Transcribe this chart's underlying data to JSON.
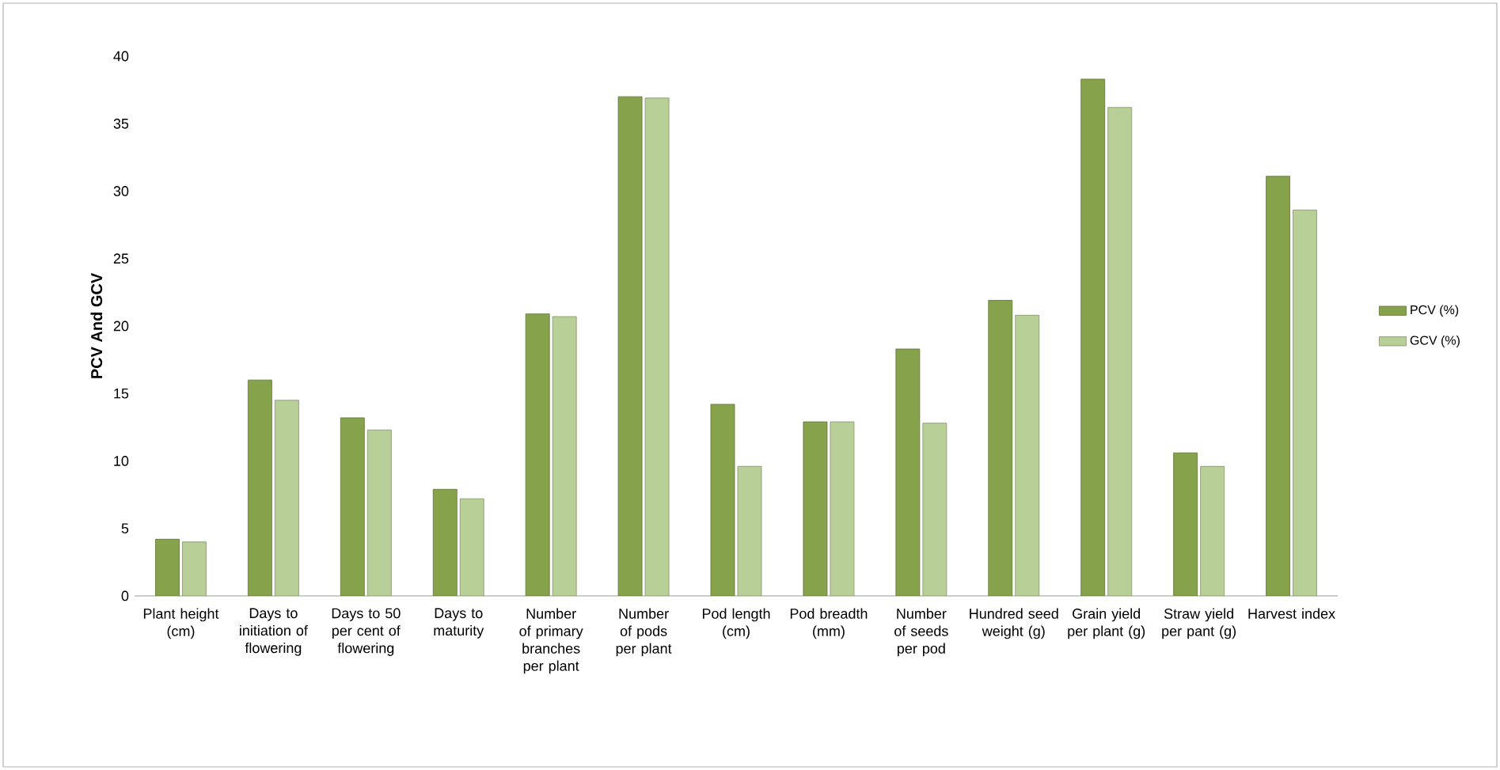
{
  "chart_data": {
    "type": "bar",
    "ylabel": "PCV And GCV",
    "categories": [
      "Plant height (cm)",
      "Days to initiation of flowering",
      "Days to 50 per cent of flowering",
      "Days to maturity",
      "Number of primary branches per plant",
      "Number of pods per plant",
      "Pod length (cm)",
      "Pod breadth (mm)",
      "Number of seeds per pod",
      "Hundred seed weight (g)",
      "Grain yield per plant (g)",
      "Straw yield per pant (g)",
      "Harvest index"
    ],
    "series": [
      {
        "name": "PCV (%)",
        "color": "#86a34c",
        "values": [
          4.2,
          16.0,
          13.2,
          7.9,
          20.9,
          37.0,
          14.2,
          12.9,
          18.3,
          21.9,
          38.3,
          10.6,
          31.1
        ]
      },
      {
        "name": "GCV (%)",
        "color": "#b8d098",
        "values": [
          4.0,
          14.5,
          12.3,
          7.2,
          20.7,
          36.9,
          9.6,
          12.9,
          12.8,
          20.8,
          36.2,
          9.6,
          28.6
        ]
      }
    ],
    "ylim": [
      0,
      40
    ],
    "yticks": [
      0,
      5,
      10,
      15,
      20,
      25,
      30,
      35,
      40
    ],
    "grid": false,
    "legend": "right"
  }
}
